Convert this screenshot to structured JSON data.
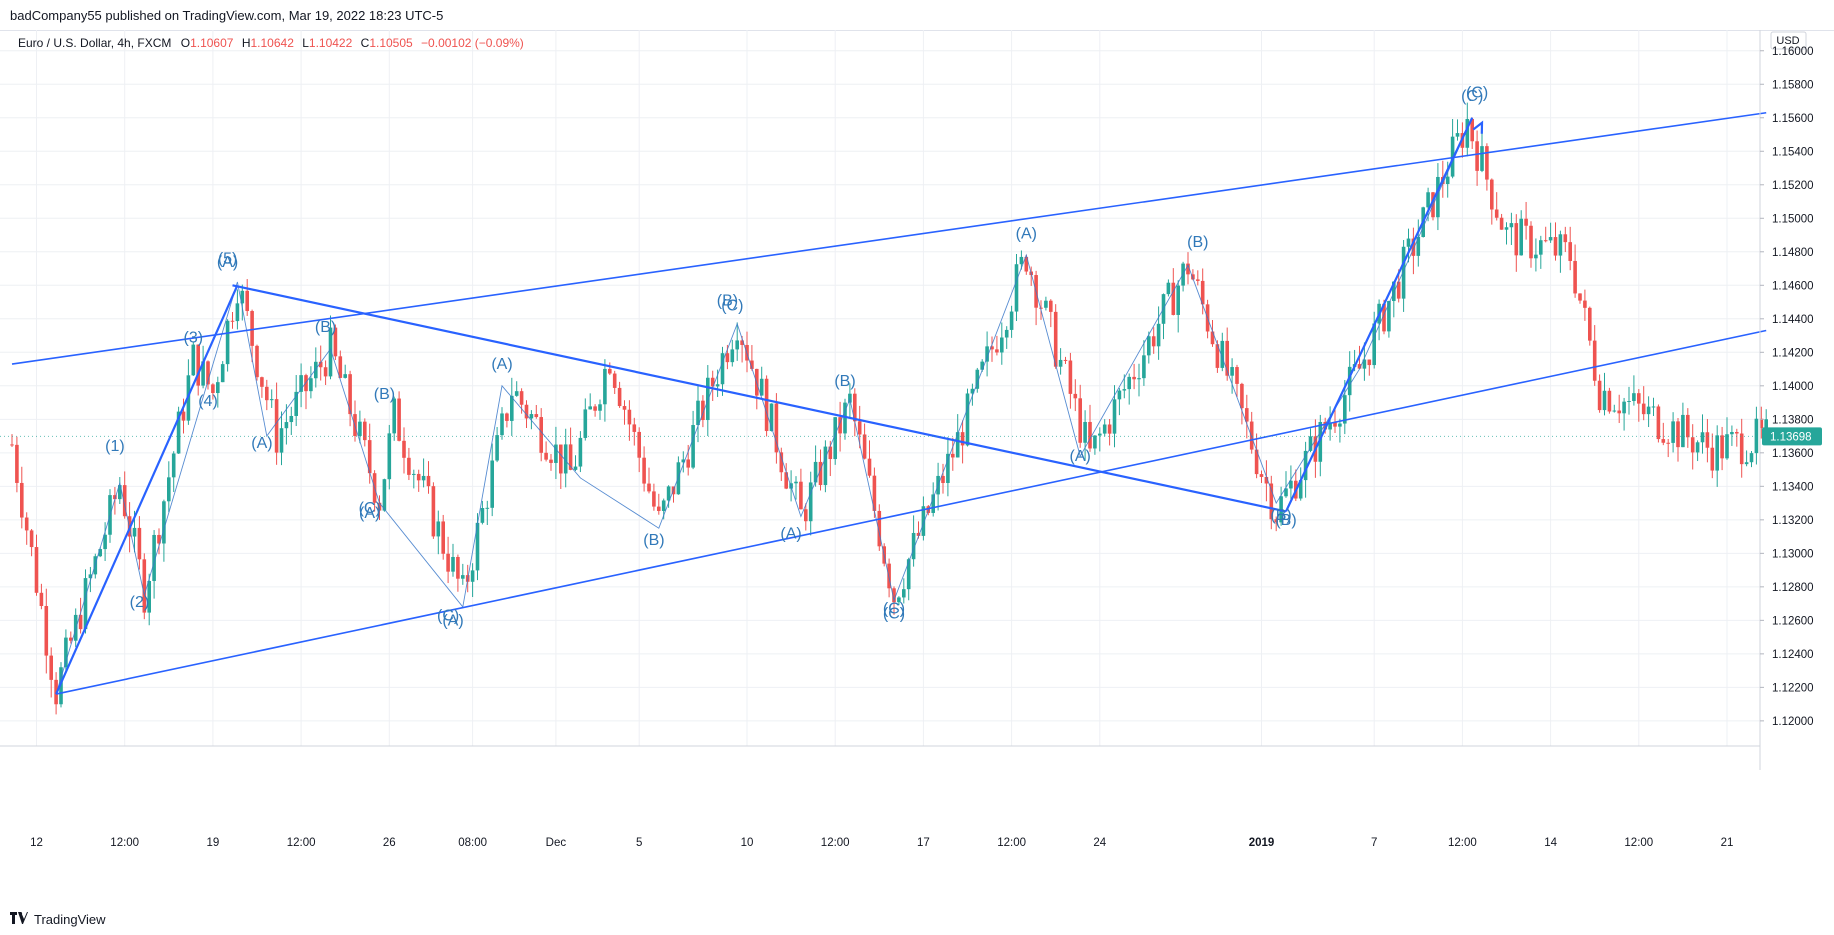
{
  "header": {
    "published": "badCompany55 published on TradingView.com, Mar 19, 2022 18:23 UTC-5"
  },
  "legend": {
    "symbol": "Euro / U.S. Dollar, 4h, FXCM",
    "open_label": "O",
    "open": "1.10607",
    "high_label": "H",
    "high": "1.10642",
    "low_label": "L",
    "low": "1.10422",
    "close_label": "C",
    "close": "1.10505",
    "change": "−0.00102 (−0.09%)"
  },
  "footer": {
    "brand": "TradingView",
    "logo_icon": "tradingview-logo-icon"
  },
  "colors": {
    "up": "#26a69a",
    "down": "#ef5350",
    "line": "#2962ff",
    "wave_label": "#3179b9",
    "grid": "#eef0f4"
  },
  "chart_data": {
    "type": "candlestick",
    "currency": "USD",
    "ylim": [
      1.1185,
      1.161
    ],
    "y_ticks": [
      "1.16000",
      "1.15800",
      "1.15600",
      "1.15400",
      "1.15200",
      "1.15000",
      "1.14800",
      "1.14600",
      "1.14400",
      "1.14200",
      "1.14000",
      "1.13800",
      "1.13600",
      "1.13400",
      "1.13200",
      "1.13000",
      "1.12800",
      "1.12600",
      "1.12400",
      "1.12200",
      "1.12000"
    ],
    "x_ticks": [
      {
        "label": "12",
        "bar": 5,
        "bold": false
      },
      {
        "label": "12:00",
        "bar": 23,
        "bold": false
      },
      {
        "label": "19",
        "bar": 41,
        "bold": false
      },
      {
        "label": "12:00",
        "bar": 59,
        "bold": false
      },
      {
        "label": "26",
        "bar": 77,
        "bold": false
      },
      {
        "label": "08:00",
        "bar": 94,
        "bold": false
      },
      {
        "label": "Dec",
        "bar": 111,
        "bold": false
      },
      {
        "label": "5",
        "bar": 128,
        "bold": false
      },
      {
        "label": "10",
        "bar": 150,
        "bold": false
      },
      {
        "label": "12:00",
        "bar": 168,
        "bold": false
      },
      {
        "label": "17",
        "bar": 186,
        "bold": false
      },
      {
        "label": "12:00",
        "bar": 204,
        "bold": false
      },
      {
        "label": "24",
        "bar": 222,
        "bold": false
      },
      {
        "label": "2019",
        "bar": 255,
        "bold": true
      },
      {
        "label": "7",
        "bar": 278,
        "bold": false
      },
      {
        "label": "12:00",
        "bar": 296,
        "bold": false
      },
      {
        "label": "14",
        "bar": 314,
        "bold": false
      },
      {
        "label": "12:00",
        "bar": 332,
        "bold": false
      },
      {
        "label": "21",
        "bar": 350,
        "bold": false
      }
    ],
    "last_price": "1.13698",
    "pivots": [
      {
        "bar": 0,
        "price": 1.1365
      },
      {
        "bar": 9,
        "price": 1.1218
      },
      {
        "bar": 22,
        "price": 1.1342
      },
      {
        "bar": 27,
        "price": 1.1277
      },
      {
        "bar": 37,
        "price": 1.1416
      },
      {
        "bar": 41,
        "price": 1.1396
      },
      {
        "bar": 46,
        "price": 1.1462
      },
      {
        "bar": 54,
        "price": 1.137
      },
      {
        "bar": 65,
        "price": 1.1422
      },
      {
        "bar": 75,
        "price": 1.1332
      },
      {
        "bar": 78,
        "price": 1.1382
      },
      {
        "bar": 92,
        "price": 1.1275
      },
      {
        "bar": 102,
        "price": 1.1398
      },
      {
        "bar": 114,
        "price": 1.1348
      },
      {
        "bar": 122,
        "price": 1.1418
      },
      {
        "bar": 132,
        "price": 1.1318
      },
      {
        "bar": 148,
        "price": 1.144
      },
      {
        "bar": 161,
        "price": 1.1322
      },
      {
        "bar": 171,
        "price": 1.139
      },
      {
        "bar": 180,
        "price": 1.1275
      },
      {
        "bar": 193,
        "price": 1.1367
      },
      {
        "bar": 207,
        "price": 1.1478
      },
      {
        "bar": 220,
        "price": 1.1358
      },
      {
        "bar": 240,
        "price": 1.1472
      },
      {
        "bar": 258,
        "price": 1.1325
      },
      {
        "bar": 275,
        "price": 1.141
      },
      {
        "bar": 297,
        "price": 1.1558
      },
      {
        "bar": 305,
        "price": 1.149
      },
      {
        "bar": 318,
        "price": 1.1478
      },
      {
        "bar": 324,
        "price": 1.1398
      },
      {
        "bar": 347,
        "price": 1.1362
      },
      {
        "bar": 358,
        "price": 1.1369
      }
    ],
    "trend_lines": [
      {
        "from": [
          0,
          1.1413
        ],
        "to": [
          358,
          1.1563
        ],
        "width": 1.6
      },
      {
        "from": [
          9,
          1.1216
        ],
        "to": [
          358,
          1.1433
        ],
        "width": 1.6
      },
      {
        "from": [
          45,
          1.146
        ],
        "to": [
          260,
          1.1325
        ],
        "width": 2.2
      },
      {
        "from": [
          9,
          1.1216
        ],
        "to": [
          46,
          1.146
        ],
        "width": 2.2
      },
      {
        "from": [
          260,
          1.1325
        ],
        "to": [
          298,
          1.156
        ],
        "width": 2.2
      }
    ],
    "arrows": [
      {
        "from": [
          260,
          1.1325
        ],
        "to": [
          300,
          1.1557
        ]
      }
    ],
    "wave_path": [
      [
        9,
        1.1216
      ],
      [
        22,
        1.1342
      ],
      [
        27,
        1.1275
      ],
      [
        46,
        1.1462
      ],
      [
        52,
        1.137
      ],
      [
        65,
        1.1422
      ],
      [
        75,
        1.133
      ],
      [
        92,
        1.1268
      ],
      [
        100,
        1.14
      ],
      [
        116,
        1.1345
      ],
      [
        132,
        1.1315
      ],
      [
        148,
        1.1437
      ],
      [
        161,
        1.1322
      ],
      [
        171,
        1.1392
      ],
      [
        180,
        1.1272
      ],
      [
        207,
        1.1478
      ],
      [
        218,
        1.1358
      ],
      [
        240,
        1.1472
      ],
      [
        258,
        1.133
      ],
      [
        275,
        1.141
      ],
      [
        298,
        1.156
      ]
    ],
    "wave_labels": [
      {
        "text": "(1)",
        "bar": 21,
        "price": 1.1361
      },
      {
        "text": "(2)",
        "bar": 26,
        "price": 1.1268
      },
      {
        "text": "(3)",
        "bar": 37,
        "price": 1.1426
      },
      {
        "text": "(4)",
        "bar": 40,
        "price": 1.1388
      },
      {
        "text": "(5)",
        "bar": 44,
        "price": 1.1473
      },
      {
        "text": "(A)",
        "bar": 44,
        "price": 1.1471
      },
      {
        "text": "(A)",
        "bar": 51,
        "price": 1.1363
      },
      {
        "text": "(B)",
        "bar": 64,
        "price": 1.1432
      },
      {
        "text": "(B)",
        "bar": 76,
        "price": 1.1392
      },
      {
        "text": "(C)",
        "bar": 73,
        "price": 1.1324
      },
      {
        "text": "(A)",
        "bar": 73,
        "price": 1.1321
      },
      {
        "text": "(A)",
        "bar": 100,
        "price": 1.141
      },
      {
        "text": "(C)",
        "bar": 89,
        "price": 1.126
      },
      {
        "text": "(A)",
        "bar": 90,
        "price": 1.1257
      },
      {
        "text": "(B)",
        "bar": 131,
        "price": 1.1305
      },
      {
        "text": "(B)",
        "bar": 146,
        "price": 1.1448
      },
      {
        "text": "(C)",
        "bar": 147,
        "price": 1.1445
      },
      {
        "text": "(A)",
        "bar": 159,
        "price": 1.1309
      },
      {
        "text": "(B)",
        "bar": 170,
        "price": 1.14
      },
      {
        "text": "(C)",
        "bar": 180,
        "price": 1.1264
      },
      {
        "text": "(C)",
        "bar": 180,
        "price": 1.1261
      },
      {
        "text": "(A)",
        "bar": 207,
        "price": 1.1488
      },
      {
        "text": "(A)",
        "bar": 218,
        "price": 1.1355
      },
      {
        "text": "(B)",
        "bar": 242,
        "price": 1.1483
      },
      {
        "text": "(B)",
        "bar": 259,
        "price": 1.132
      },
      {
        "text": "(B)",
        "bar": 260,
        "price": 1.1317
      },
      {
        "text": "(C)",
        "bar": 298,
        "price": 1.157
      },
      {
        "text": "(C)",
        "bar": 299,
        "price": 1.1572
      }
    ]
  }
}
